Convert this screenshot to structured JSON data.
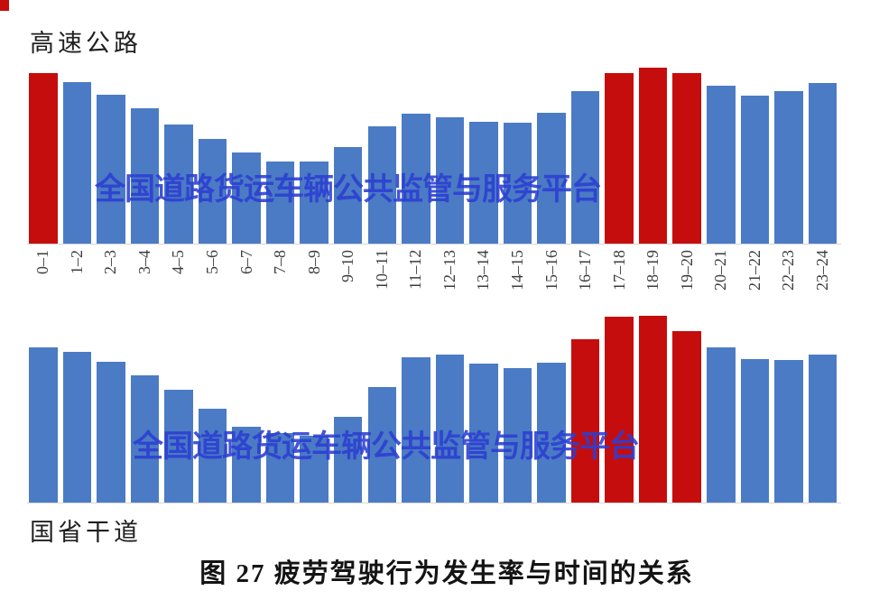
{
  "caption": "图 27 疲劳驾驶行为发生率与时间的关系",
  "watermark": {
    "text": "全国道路货运车辆公共监管与服务平台",
    "color": "#2c3ed2"
  },
  "chart_data": [
    {
      "type": "bar",
      "title": "高速公路",
      "categories": [
        "0–1",
        "1–2",
        "2–3",
        "3–4",
        "4–5",
        "5–6",
        "6–7",
        "7–8",
        "8–9",
        "9–10",
        "10–11",
        "11–12",
        "12–13",
        "13–14",
        "14–15",
        "15–16",
        "16–17",
        "17–18",
        "18–19",
        "19–20",
        "20–21",
        "21–22",
        "22–23",
        "23–24"
      ],
      "values": [
        189,
        179,
        165,
        150,
        132,
        116,
        101,
        91,
        91,
        107,
        130,
        144,
        140,
        135,
        134,
        145,
        169,
        189,
        195,
        189,
        175,
        164,
        169,
        178
      ],
      "units": "relative bar height (px); chart has no visible y-axis",
      "highlight_indices": [
        0,
        17,
        18,
        19
      ],
      "bar_color": "#4b7bc4",
      "highlight_color": "#c60d0d",
      "xlabel": "",
      "ylabel": "",
      "grid": "off",
      "legend": "none",
      "show_x_labels": true
    },
    {
      "type": "bar",
      "title": "国省干道",
      "categories": [
        "0–1",
        "1–2",
        "2–3",
        "3–4",
        "4–5",
        "5–6",
        "6–7",
        "7–8",
        "8–9",
        "9–10",
        "10–11",
        "11–12",
        "12–13",
        "13–14",
        "14–15",
        "15–16",
        "16–17",
        "17–18",
        "18–19",
        "19–20",
        "20–21",
        "21–22",
        "22–23",
        "23–24"
      ],
      "values": [
        172,
        167,
        156,
        141,
        125,
        104,
        84,
        77,
        74,
        95,
        128,
        161,
        164,
        154,
        149,
        155,
        181,
        206,
        207,
        190,
        172,
        159,
        158,
        164
      ],
      "units": "relative bar height (px); chart has no visible y-axis",
      "highlight_indices": [
        16,
        17,
        18,
        19
      ],
      "bar_color": "#4b7bc4",
      "highlight_color": "#c60d0d",
      "xlabel": "",
      "ylabel": "",
      "grid": "off",
      "legend": "none",
      "show_x_labels": false
    }
  ]
}
